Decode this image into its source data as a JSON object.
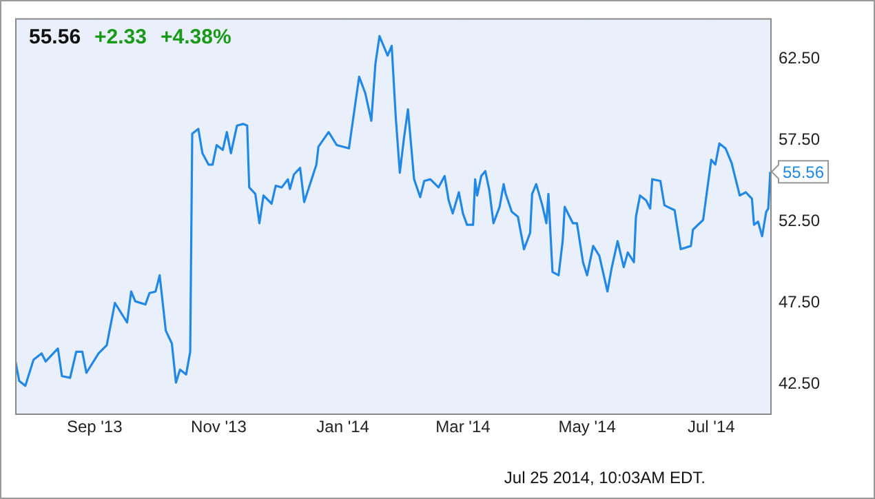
{
  "chart_data": {
    "type": "line",
    "title": "55.56",
    "annotations": [
      "+2.33",
      "+4.38%",
      {
        "text": "55.56",
        "x": "2014-07-30",
        "y": 55.56
      },
      "Jul 25 2014, 10:03AM EDT."
    ],
    "x": [
      "2013-07-24",
      "2013-07-26",
      "2013-07-29",
      "2013-08-02",
      "2013-08-06",
      "2013-08-08",
      "2013-08-14",
      "2013-08-16",
      "2013-08-20",
      "2013-08-23",
      "2013-08-26",
      "2013-08-28",
      "2013-09-03",
      "2013-09-07",
      "2013-09-11",
      "2013-09-17",
      "2013-09-19",
      "2013-09-21",
      "2013-09-26",
      "2013-09-28",
      "2013-10-01",
      "2013-10-03",
      "2013-10-06",
      "2013-10-09",
      "2013-10-11",
      "2013-10-13",
      "2013-10-16",
      "2013-10-18",
      "2013-10-19",
      "2013-10-22",
      "2013-10-24",
      "2013-10-27",
      "2013-10-29",
      "2013-10-31",
      "2013-11-03",
      "2013-11-05",
      "2013-11-07",
      "2013-11-10",
      "2013-11-13",
      "2013-11-15",
      "2013-11-16",
      "2013-11-19",
      "2013-11-21",
      "2013-11-23",
      "2013-11-27",
      "2013-11-29",
      "2013-12-02",
      "2013-12-05",
      "2013-12-06",
      "2013-12-08",
      "2013-12-11",
      "2013-12-13",
      "2013-12-19",
      "2013-12-20",
      "2013-12-25",
      "2013-12-29",
      "2014-01-04",
      "2014-01-09",
      "2014-01-12",
      "2014-01-15",
      "2014-01-17",
      "2014-01-19",
      "2014-01-23",
      "2014-01-25",
      "2014-01-27",
      "2014-01-29",
      "2014-01-31",
      "2014-02-02",
      "2014-02-05",
      "2014-02-08",
      "2014-02-10",
      "2014-02-13",
      "2014-02-17",
      "2014-02-20",
      "2014-02-22",
      "2014-02-24",
      "2014-02-27",
      "2014-03-01",
      "2014-03-03",
      "2014-03-06",
      "2014-03-07",
      "2014-03-08",
      "2014-03-10",
      "2014-03-12",
      "2014-03-14",
      "2014-03-16",
      "2014-03-19",
      "2014-03-21",
      "2014-03-22",
      "2014-03-25",
      "2014-03-28",
      "2014-03-31",
      "2014-04-03",
      "2014-04-04",
      "2014-04-06",
      "2014-04-09",
      "2014-04-11",
      "2014-04-12",
      "2014-04-14",
      "2014-04-17",
      "2014-04-19",
      "2014-04-20",
      "2014-04-24",
      "2014-04-26",
      "2014-04-29",
      "2014-05-01",
      "2014-05-04",
      "2014-05-07",
      "2014-05-11",
      "2014-05-13",
      "2014-05-16",
      "2014-05-19",
      "2014-05-21",
      "2014-05-24",
      "2014-05-25",
      "2014-05-27",
      "2014-05-30",
      "2014-06-01",
      "2014-06-02",
      "2014-06-06",
      "2014-06-08",
      "2014-06-13",
      "2014-06-16",
      "2014-06-21",
      "2014-06-22",
      "2014-06-27",
      "2014-07-01",
      "2014-07-03",
      "2014-07-05",
      "2014-07-08",
      "2014-07-11",
      "2014-07-15",
      "2014-07-18",
      "2014-07-21",
      "2014-07-22",
      "2014-07-24",
      "2014-07-26",
      "2014-07-28",
      "2014-07-29",
      "2014-07-30"
    ],
    "series": [
      {
        "color": "#2288e6",
        "values": [
          44.0,
          42.7,
          42.4,
          44.0,
          44.4,
          43.9,
          44.7,
          43.0,
          42.9,
          44.5,
          44.5,
          43.2,
          44.4,
          44.9,
          47.5,
          46.3,
          48.2,
          47.6,
          47.4,
          48.1,
          48.2,
          49.2,
          45.8,
          45.0,
          42.6,
          43.4,
          43.1,
          44.5,
          57.9,
          58.2,
          56.7,
          56.0,
          56.0,
          57.2,
          56.9,
          58.0,
          56.7,
          58.4,
          58.5,
          58.4,
          54.6,
          54.2,
          52.4,
          54.1,
          53.6,
          54.7,
          54.6,
          55.1,
          54.5,
          55.4,
          55.8,
          53.7,
          56.0,
          57.1,
          58.0,
          57.2,
          57.0,
          61.4,
          60.4,
          58.7,
          62.2,
          63.9,
          62.7,
          63.3,
          58.9,
          55.5,
          57.6,
          59.4,
          55.1,
          54.0,
          55.0,
          55.1,
          54.6,
          55.3,
          53.8,
          53.0,
          54.3,
          53.0,
          52.3,
          52.3,
          55.1,
          54.1,
          55.3,
          55.6,
          54.4,
          52.4,
          53.4,
          54.8,
          54.2,
          53.1,
          52.8,
          50.8,
          51.8,
          54.2,
          54.8,
          53.5,
          52.4,
          54.2,
          49.4,
          49.2,
          51.3,
          53.4,
          52.4,
          52.4,
          50.0,
          49.2,
          51.0,
          50.4,
          48.2,
          49.6,
          51.3,
          49.7,
          50.6,
          50.0,
          52.8,
          54.1,
          53.8,
          53.3,
          55.1,
          55.0,
          53.5,
          53.2,
          50.8,
          51.0,
          52.0,
          52.6,
          56.3,
          56.0,
          57.3,
          57.0,
          56.1,
          54.1,
          54.3,
          53.9,
          52.3,
          52.5,
          51.6,
          53.1,
          53.3,
          55.56
        ]
      }
    ],
    "xlim": [
      "2013-07-24",
      "2014-07-30"
    ],
    "xticks": [
      {
        "value": "2013-09-01",
        "label": "Sep '13"
      },
      {
        "value": "2013-11-01",
        "label": "Nov '13"
      },
      {
        "value": "2014-01-01",
        "label": "Jan '14"
      },
      {
        "value": "2014-03-01",
        "label": "Mar '14"
      },
      {
        "value": "2014-05-01",
        "label": "May '14"
      },
      {
        "value": "2014-07-01",
        "label": "Jul '14"
      }
    ],
    "ylim": [
      40.7,
      65.0
    ],
    "yticks": [
      {
        "value": 42.5,
        "label": "42.50"
      },
      {
        "value": 47.5,
        "label": "47.50"
      },
      {
        "value": 52.5,
        "label": "52.50"
      },
      {
        "value": 57.5,
        "label": "57.50"
      },
      {
        "value": 62.5,
        "label": "62.50"
      }
    ],
    "grid": true,
    "legend": false,
    "marker": "none",
    "line_style": "solid"
  }
}
